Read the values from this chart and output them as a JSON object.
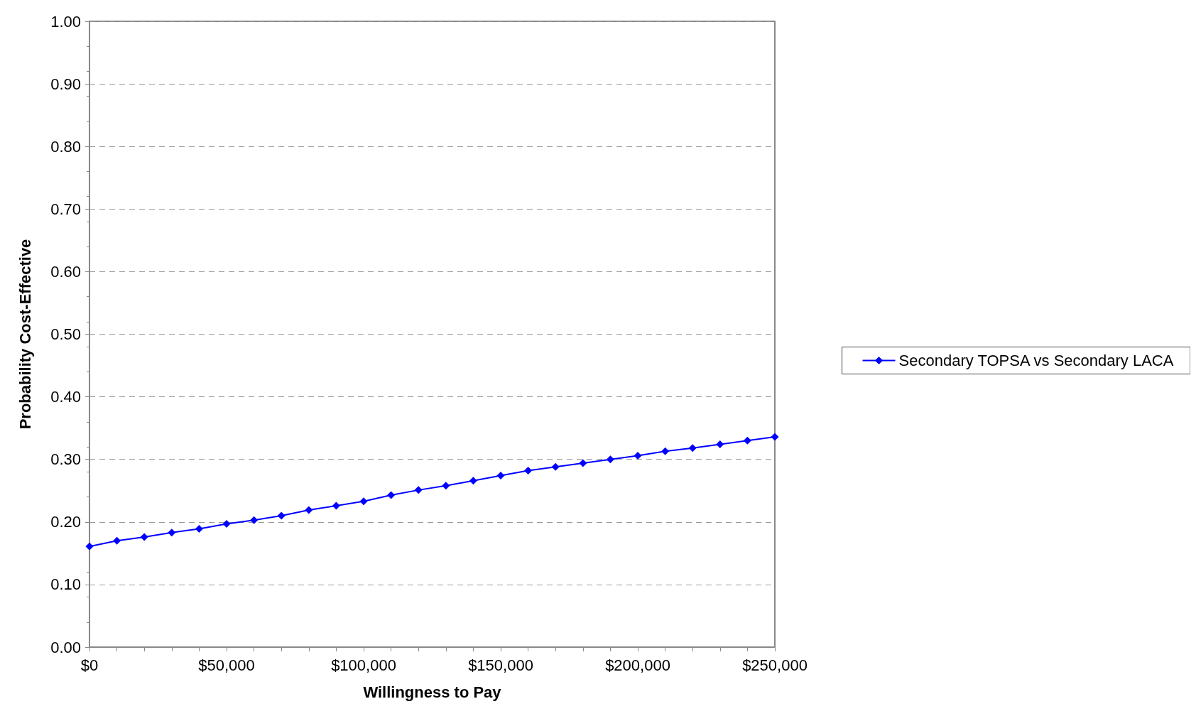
{
  "chart_data": {
    "type": "line",
    "xlabel": "Willingness to Pay",
    "ylabel": "Probability Cost-Effective",
    "x": [
      0,
      10000,
      20000,
      30000,
      40000,
      50000,
      60000,
      70000,
      80000,
      90000,
      100000,
      110000,
      120000,
      130000,
      140000,
      150000,
      160000,
      170000,
      180000,
      190000,
      200000,
      210000,
      220000,
      230000,
      240000,
      250000
    ],
    "series": [
      {
        "name": "Secondary TOPSA vs Secondary LACA",
        "color": "#0000ff",
        "values": [
          0.161,
          0.17,
          0.176,
          0.183,
          0.189,
          0.197,
          0.203,
          0.21,
          0.219,
          0.226,
          0.233,
          0.243,
          0.251,
          0.258,
          0.266,
          0.274,
          0.282,
          0.288,
          0.294,
          0.3,
          0.306,
          0.313,
          0.318,
          0.324,
          0.33,
          0.336
        ]
      }
    ],
    "xlim": [
      0,
      250000
    ],
    "xticks": [
      {
        "value": 0,
        "label": "$0"
      },
      {
        "value": 10000,
        "label": null
      },
      {
        "value": 20000,
        "label": null
      },
      {
        "value": 30000,
        "label": null
      },
      {
        "value": 40000,
        "label": null
      },
      {
        "value": 50000,
        "label": "$50,000"
      },
      {
        "value": 60000,
        "label": null
      },
      {
        "value": 70000,
        "label": null
      },
      {
        "value": 80000,
        "label": null
      },
      {
        "value": 90000,
        "label": null
      },
      {
        "value": 100000,
        "label": "$100,000"
      },
      {
        "value": 110000,
        "label": null
      },
      {
        "value": 120000,
        "label": null
      },
      {
        "value": 130000,
        "label": null
      },
      {
        "value": 140000,
        "label": null
      },
      {
        "value": 150000,
        "label": "$150,000"
      },
      {
        "value": 160000,
        "label": null
      },
      {
        "value": 170000,
        "label": null
      },
      {
        "value": 180000,
        "label": null
      },
      {
        "value": 190000,
        "label": null
      },
      {
        "value": 200000,
        "label": "$200,000"
      },
      {
        "value": 210000,
        "label": null
      },
      {
        "value": 220000,
        "label": null
      },
      {
        "value": 230000,
        "label": null
      },
      {
        "value": 240000,
        "label": null
      },
      {
        "value": 250000,
        "label": "$250,000"
      }
    ],
    "ylim": [
      0,
      1
    ],
    "yticks": [
      {
        "value": 0,
        "label": "0.00"
      },
      {
        "value": 0.1,
        "label": "0.10"
      },
      {
        "value": 0.2,
        "label": "0.20"
      },
      {
        "value": 0.3,
        "label": "0.30"
      },
      {
        "value": 0.4,
        "label": "0.40"
      },
      {
        "value": 0.5,
        "label": "0.50"
      },
      {
        "value": 0.6,
        "label": "0.60"
      },
      {
        "value": 0.7,
        "label": "0.70"
      },
      {
        "value": 0.8,
        "label": "0.80"
      },
      {
        "value": 0.9,
        "label": "0.90"
      },
      {
        "value": 1,
        "label": "1.00"
      }
    ],
    "grid": "y",
    "legend": "right",
    "marker": "diamond",
    "line_style": "solid"
  }
}
